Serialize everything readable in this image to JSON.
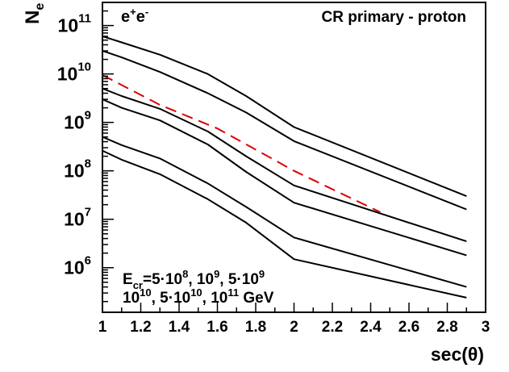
{
  "chart_data": {
    "type": "line",
    "title": "",
    "xlabel": "sec(θ)",
    "ylabel": {
      "base": "N",
      "sub": "e"
    },
    "yscale": "log",
    "xlim": [
      1,
      3
    ],
    "ylim": [
      120000,
      300000000000
    ],
    "grid": false,
    "x_ticks": [
      "1",
      "1.2",
      "1.4",
      "1.6",
      "1.8",
      "2",
      "2.2",
      "2.4",
      "2.6",
      "2.8",
      "3"
    ],
    "y_ticks": [
      {
        "value": 1000000,
        "base": "10",
        "exp": "6"
      },
      {
        "value": 10000000,
        "base": "10",
        "exp": "7"
      },
      {
        "value": 100000000,
        "base": "10",
        "exp": "8"
      },
      {
        "value": 1000000000,
        "base": "10",
        "exp": "9"
      },
      {
        "value": 10000000000,
        "base": "10",
        "exp": "10"
      },
      {
        "value": 100000000000,
        "base": "10",
        "exp": "11"
      }
    ],
    "annotations": {
      "particle": {
        "base": "e",
        "sup1": "+",
        "mid": "e",
        "sup2": "-"
      },
      "primary": "CR primary - proton",
      "energy_line1": {
        "prefix": "E",
        "sub": "cr",
        "eq": "=5",
        "dot1": "·",
        "t1": "10",
        "e1": "8",
        "t2": ", 10",
        "e2": "9",
        "t3": ", 5",
        "dot2": "·",
        "t4": "10",
        "e4": "9"
      },
      "energy_line2": {
        "t1": "10",
        "e1": "10",
        "t2": ", 5",
        "dot": "·",
        "t3": "10",
        "e3": "10",
        "t4": ", 10",
        "e4": "11",
        "unit": " GeV"
      }
    },
    "x": [
      1.0,
      1.1,
      1.3,
      1.55,
      1.75,
      2.0,
      2.9
    ],
    "series": [
      {
        "values": [
          260000000,
          170000000,
          85000000,
          26000000,
          8500000,
          1500000,
          240000
        ],
        "color": "#000000"
      },
      {
        "values": [
          500000000,
          340000000,
          180000000,
          55000000,
          18000000,
          4200000,
          400000
        ],
        "color": "#000000"
      },
      {
        "values": [
          3000000000,
          2000000000,
          1100000000,
          350000000,
          95000000,
          22000000,
          1800000
        ],
        "color": "#000000"
      },
      {
        "values": [
          5000000000,
          3500000000,
          1900000000,
          650000000,
          200000000,
          50000000,
          3500000
        ],
        "color": "#000000"
      },
      {
        "values": [
          30000000000,
          22000000000,
          11000000000,
          4000000000,
          1600000000,
          410000000,
          16000000
        ],
        "color": "#000000"
      },
      {
        "values": [
          60000000000,
          45000000000,
          25000000000,
          10000000000,
          3500000000,
          800000000,
          30000000
        ],
        "color": "#000000"
      },
      {
        "x": [
          1.0,
          1.3,
          1.6,
          2.0,
          2.45
        ],
        "values": [
          9500000000,
          2300000000,
          750000000,
          100000000,
          14000000
        ],
        "color": "#dd0000",
        "dashed": true
      }
    ]
  }
}
